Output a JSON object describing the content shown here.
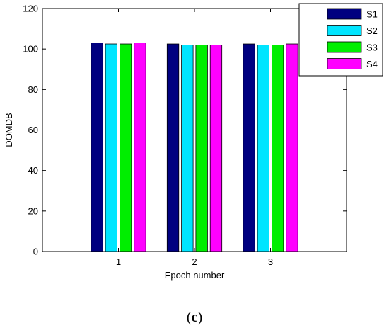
{
  "chart_data": {
    "type": "bar",
    "categories": [
      "1",
      "2",
      "3"
    ],
    "series": [
      {
        "name": "S1",
        "values": [
          103,
          102.5,
          102.5
        ],
        "color": "#000080"
      },
      {
        "name": "S2",
        "values": [
          102.5,
          102,
          102
        ],
        "color": "#00e5ff"
      },
      {
        "name": "S3",
        "values": [
          102.5,
          102,
          102
        ],
        "color": "#00ee00"
      },
      {
        "name": "S4",
        "values": [
          103,
          102,
          102.5
        ],
        "color": "#ff00ff"
      }
    ],
    "xlabel": "Epoch number",
    "ylabel": "DOMDB",
    "ylim": [
      0,
      120
    ],
    "yticks": [
      0,
      20,
      40,
      60,
      80,
      100,
      120
    ],
    "grid": false,
    "legend_position": "top-right"
  },
  "caption": {
    "open": "(",
    "letter": "c",
    "close": ")"
  }
}
